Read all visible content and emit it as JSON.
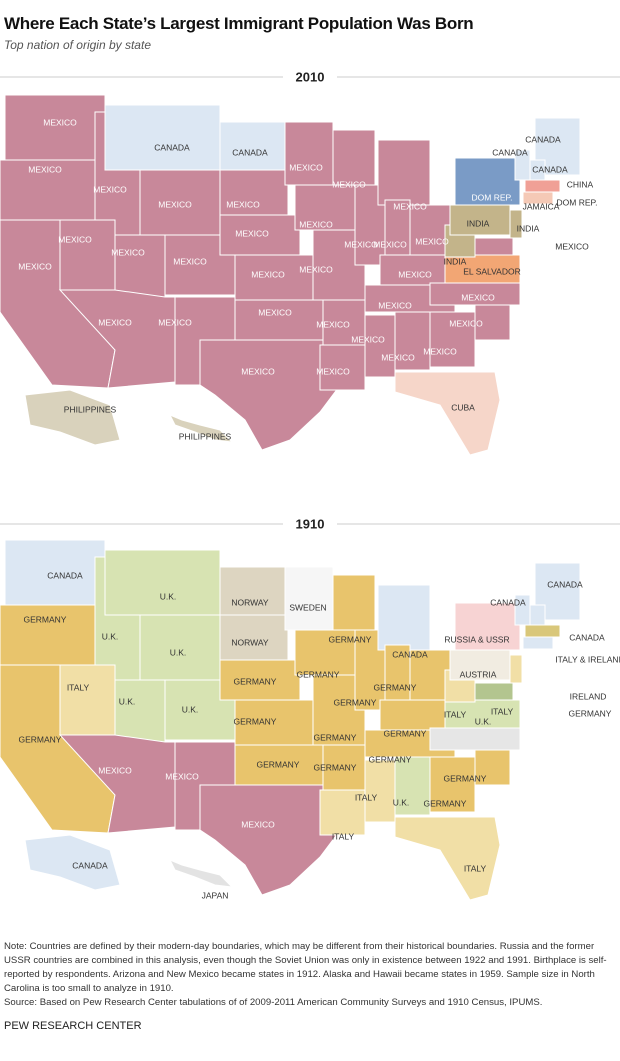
{
  "title": "Where Each State’s Largest Immigrant Population Was Born",
  "subtitle": "Top nation of origin by state",
  "maps": [
    {
      "year": "2010",
      "labels": [
        "MEXICO",
        "MEXICO",
        "MEXICO",
        "MEXICO",
        "MEXICO",
        "CANADA",
        "MEXICO",
        "MEXICO",
        "MEXICO",
        "MEXICO",
        "MEXICO",
        "CANADA",
        "MEXICO",
        "MEXICO",
        "MEXICO",
        "MEXICO",
        "MEXICO",
        "MEXICO",
        "MEXICO",
        "MEXICO",
        "MEXICO",
        "MEXICO",
        "MEXICO",
        "MEXICO",
        "MEXICO",
        "MEXICO",
        "MEXICO",
        "MEXICO",
        "MEXICO",
        "MEXICO",
        "MEXICO",
        "MEXICO",
        "MEXICO",
        "MEXICO",
        "EL SALVADOR",
        "INDIA",
        "INDIA",
        "DOM REP.",
        "INDIA",
        "MEXICO",
        "CUBA",
        "CANADA",
        "CANADA",
        "CANADA",
        "CHINA",
        "JAMAICA",
        "DOM REP.",
        "PHILIPPINES",
        "PHILIPPINES"
      ]
    },
    {
      "year": "1910",
      "labels": [
        "CANADA",
        "GERMANY",
        "U.K.",
        "NORWAY",
        "SWEDEN",
        "U.K.",
        "U.K.",
        "NORWAY",
        "GERMANY",
        "CANADA",
        "RUSSIA & USSR",
        "CANADA",
        "CANADA",
        "CANADA",
        "ITALY & IRELAND",
        "ITALY",
        "U.K.",
        "U.K.",
        "GERMANY",
        "GERMANY",
        "GERMANY",
        "GERMANY",
        "AUSTRIA",
        "ITALY",
        "IRELAND",
        "GERMANY",
        "ITALY",
        "U.K.",
        "GERMANY",
        "GERMANY",
        "GERMANY",
        "GERMANY",
        "GERMANY",
        "GERMANY",
        "GERMANY",
        "MEXICO",
        "MEXICO",
        "MEXICO",
        "ITALY",
        "U.K.",
        "GERMANY",
        "GERMANY",
        "ITALY",
        "ITALY",
        "CANADA",
        "JAPAN"
      ]
    }
  ],
  "note": "Note: Countries are defined by their modern-day boundaries, which may be different from their historical boundaries. Russia and the former USSR countries are combined in this analysis, even though the Soviet Union was only in existence between 1922 and 1991. Birthplace is self-reported by respondents. Arizona and New Mexico became states in 1912. Alaska and Hawaii became states in 1959. Sample size in North Carolina is too small to analyze in 1910.",
  "source": "Source: Based on Pew Research Center tabulations of of 2009-2011 American Community Surveys and 1910 Census, IPUMS.",
  "footer": "PEW RESEARCH CENTER"
}
